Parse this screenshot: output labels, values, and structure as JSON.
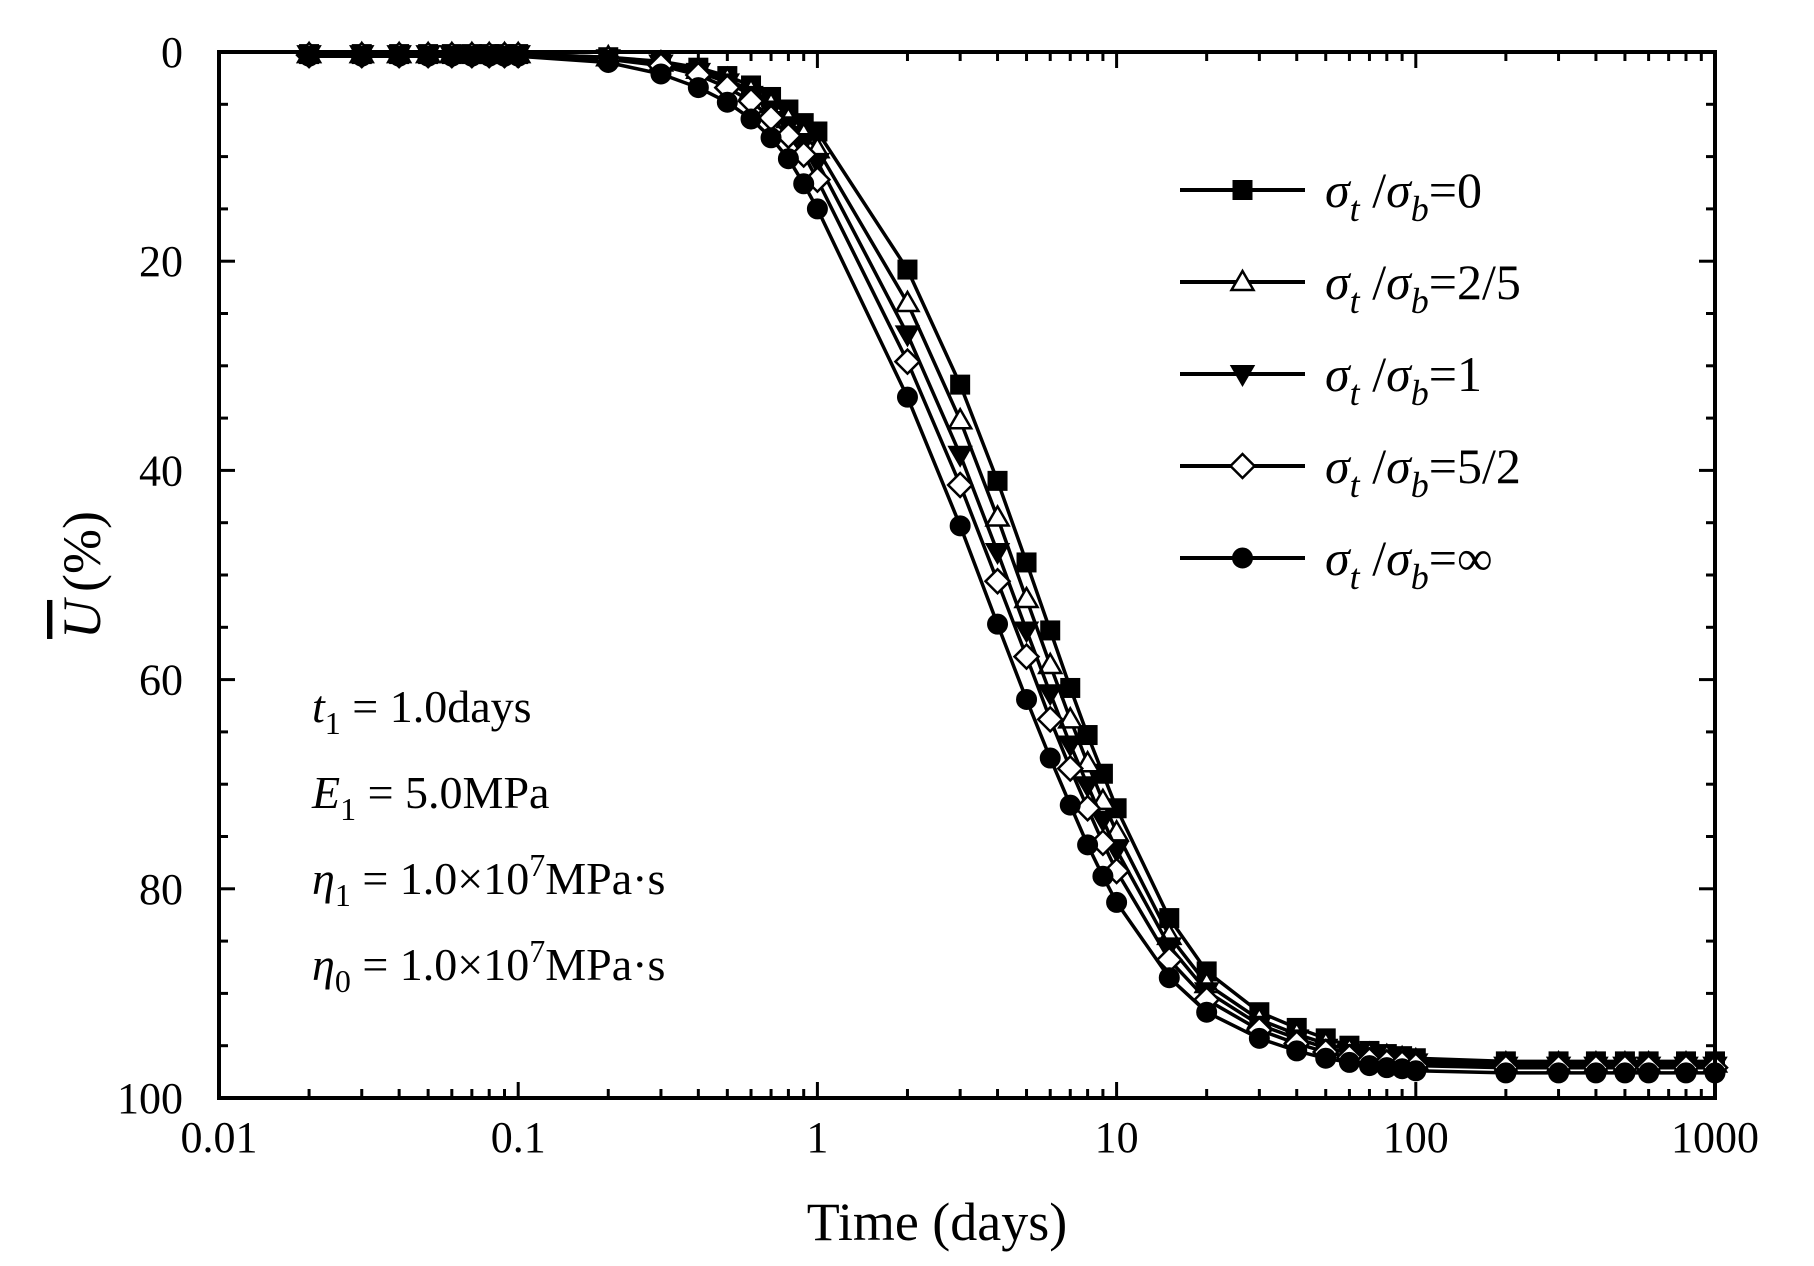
{
  "chart_data": {
    "type": "line",
    "title": "",
    "xlabel": "Time (days)",
    "ylabel": "U (%)",
    "ylabel_overline_symbol": "U",
    "ylabel_unit": "(%)",
    "xscale": "log",
    "xlim": [
      0.01,
      1000
    ],
    "ylim": [
      0,
      100
    ],
    "y_inverted": true,
    "grid": false,
    "legend_position": "top-right",
    "x_tick_labels": [
      "0.01",
      "0.1",
      "1",
      "10",
      "100",
      "1000"
    ],
    "y_tick_labels": [
      "0",
      "20",
      "40",
      "60",
      "80",
      "100"
    ],
    "x": [
      0.02,
      0.03,
      0.04,
      0.05,
      0.06,
      0.07,
      0.08,
      0.09,
      0.1,
      0.2,
      0.3,
      0.4,
      0.5,
      0.6,
      0.7,
      0.8,
      0.9,
      1,
      2,
      3,
      4,
      5,
      6,
      7,
      8,
      9,
      10,
      15,
      20,
      30,
      40,
      50,
      60,
      70,
      80,
      90,
      100,
      200,
      300,
      400,
      500,
      600,
      800,
      1000
    ],
    "series": [
      {
        "name": "σt/σb=0",
        "marker": "square-filled",
        "values": [
          0.2,
          0.2,
          0.2,
          0.2,
          0.2,
          0.2,
          0.2,
          0.2,
          0.2,
          0.5,
          0.9,
          1.5,
          2.3,
          3.2,
          4.3,
          5.5,
          6.8,
          7.6,
          20.8,
          31.8,
          41.0,
          48.8,
          55.3,
          60.8,
          65.3,
          69.0,
          72.3,
          82.8,
          87.9,
          91.8,
          93.3,
          94.3,
          95.0,
          95.5,
          95.8,
          96.0,
          96.2,
          96.5,
          96.5,
          96.5,
          96.5,
          96.5,
          96.5,
          96.5
        ]
      },
      {
        "name": "σt/σb=2/5",
        "marker": "triangle-up-open",
        "values": [
          0.2,
          0.2,
          0.2,
          0.2,
          0.2,
          0.2,
          0.2,
          0.2,
          0.2,
          0.5,
          1.0,
          1.7,
          2.6,
          3.7,
          5.0,
          6.4,
          7.9,
          9.3,
          24.0,
          35.2,
          44.5,
          52.3,
          58.6,
          63.8,
          68.0,
          71.6,
          74.6,
          84.5,
          89.1,
          92.5,
          93.9,
          94.8,
          95.4,
          95.8,
          96.0,
          96.2,
          96.4,
          96.7,
          96.7,
          96.7,
          96.7,
          96.7,
          96.7,
          96.7
        ]
      },
      {
        "name": "σt/σb=1",
        "marker": "triangle-down-filled",
        "values": [
          0.2,
          0.2,
          0.2,
          0.2,
          0.2,
          0.2,
          0.2,
          0.2,
          0.2,
          0.6,
          1.1,
          1.9,
          2.9,
          4.1,
          5.5,
          7.0,
          8.6,
          10.5,
          27.0,
          38.5,
          47.8,
          55.3,
          61.3,
          66.2,
          70.1,
          73.4,
          76.3,
          85.5,
          89.8,
          93.0,
          94.3,
          95.2,
          95.7,
          96.0,
          96.3,
          96.4,
          96.6,
          96.9,
          96.9,
          96.9,
          96.9,
          96.9,
          96.9,
          96.9
        ]
      },
      {
        "name": "σt/σb=5/2",
        "marker": "diamond-open",
        "values": [
          0.3,
          0.3,
          0.3,
          0.3,
          0.3,
          0.3,
          0.3,
          0.3,
          0.3,
          0.7,
          1.3,
          2.2,
          3.4,
          4.7,
          6.3,
          8.0,
          9.8,
          12.2,
          29.6,
          41.4,
          50.6,
          57.8,
          63.8,
          68.5,
          72.3,
          75.6,
          78.3,
          86.8,
          90.6,
          93.5,
          94.8,
          95.6,
          96.1,
          96.4,
          96.6,
          96.7,
          96.9,
          97.1,
          97.1,
          97.1,
          97.1,
          97.1,
          97.1,
          97.1
        ]
      },
      {
        "name": "σt/σb=∞",
        "marker": "circle-filled",
        "values": [
          0.4,
          0.4,
          0.4,
          0.4,
          0.4,
          0.4,
          0.4,
          0.4,
          0.4,
          1.0,
          2.1,
          3.4,
          4.8,
          6.4,
          8.2,
          10.2,
          12.6,
          15.0,
          33.0,
          45.3,
          54.7,
          61.9,
          67.5,
          72.0,
          75.8,
          78.8,
          81.3,
          88.5,
          91.8,
          94.3,
          95.5,
          96.2,
          96.6,
          96.9,
          97.1,
          97.2,
          97.4,
          97.6,
          97.6,
          97.6,
          97.6,
          97.6,
          97.6,
          97.6
        ]
      }
    ],
    "legend": [
      {
        "sym1": "σ",
        "sub1": "t",
        "slash": " /",
        "sym2": "σ",
        "sub2": "b",
        "rhs": "=0"
      },
      {
        "sym1": "σ",
        "sub1": "t",
        "slash": " /",
        "sym2": "σ",
        "sub2": "b",
        "rhs": "=2/5"
      },
      {
        "sym1": "σ",
        "sub1": "t",
        "slash": " /",
        "sym2": "σ",
        "sub2": "b",
        "rhs": "=1"
      },
      {
        "sym1": "σ",
        "sub1": "t",
        "slash": " /",
        "sym2": "σ",
        "sub2": "b",
        "rhs": "=5/2"
      },
      {
        "sym1": "σ",
        "sub1": "t",
        "slash": " /",
        "sym2": "σ",
        "sub2": "b",
        "rhs": "=∞"
      }
    ],
    "annotations": [
      {
        "sym": "t",
        "sub": "1",
        "rhs": " = 1.0days",
        "sup": "",
        "tail": ""
      },
      {
        "sym": "E",
        "sub": "1",
        "rhs": " = 5.0MPa",
        "sup": "",
        "tail": ""
      },
      {
        "sym": "η",
        "sub": "1",
        "rhs": " = 1.0×10",
        "sup": "7",
        "tail": "MPa·s"
      },
      {
        "sym": "η",
        "sub": "0",
        "rhs": " = 1.0×10",
        "sup": "7",
        "tail": "MPa·s"
      }
    ]
  },
  "colors": {
    "ink": "#000000",
    "background": "#ffffff"
  }
}
